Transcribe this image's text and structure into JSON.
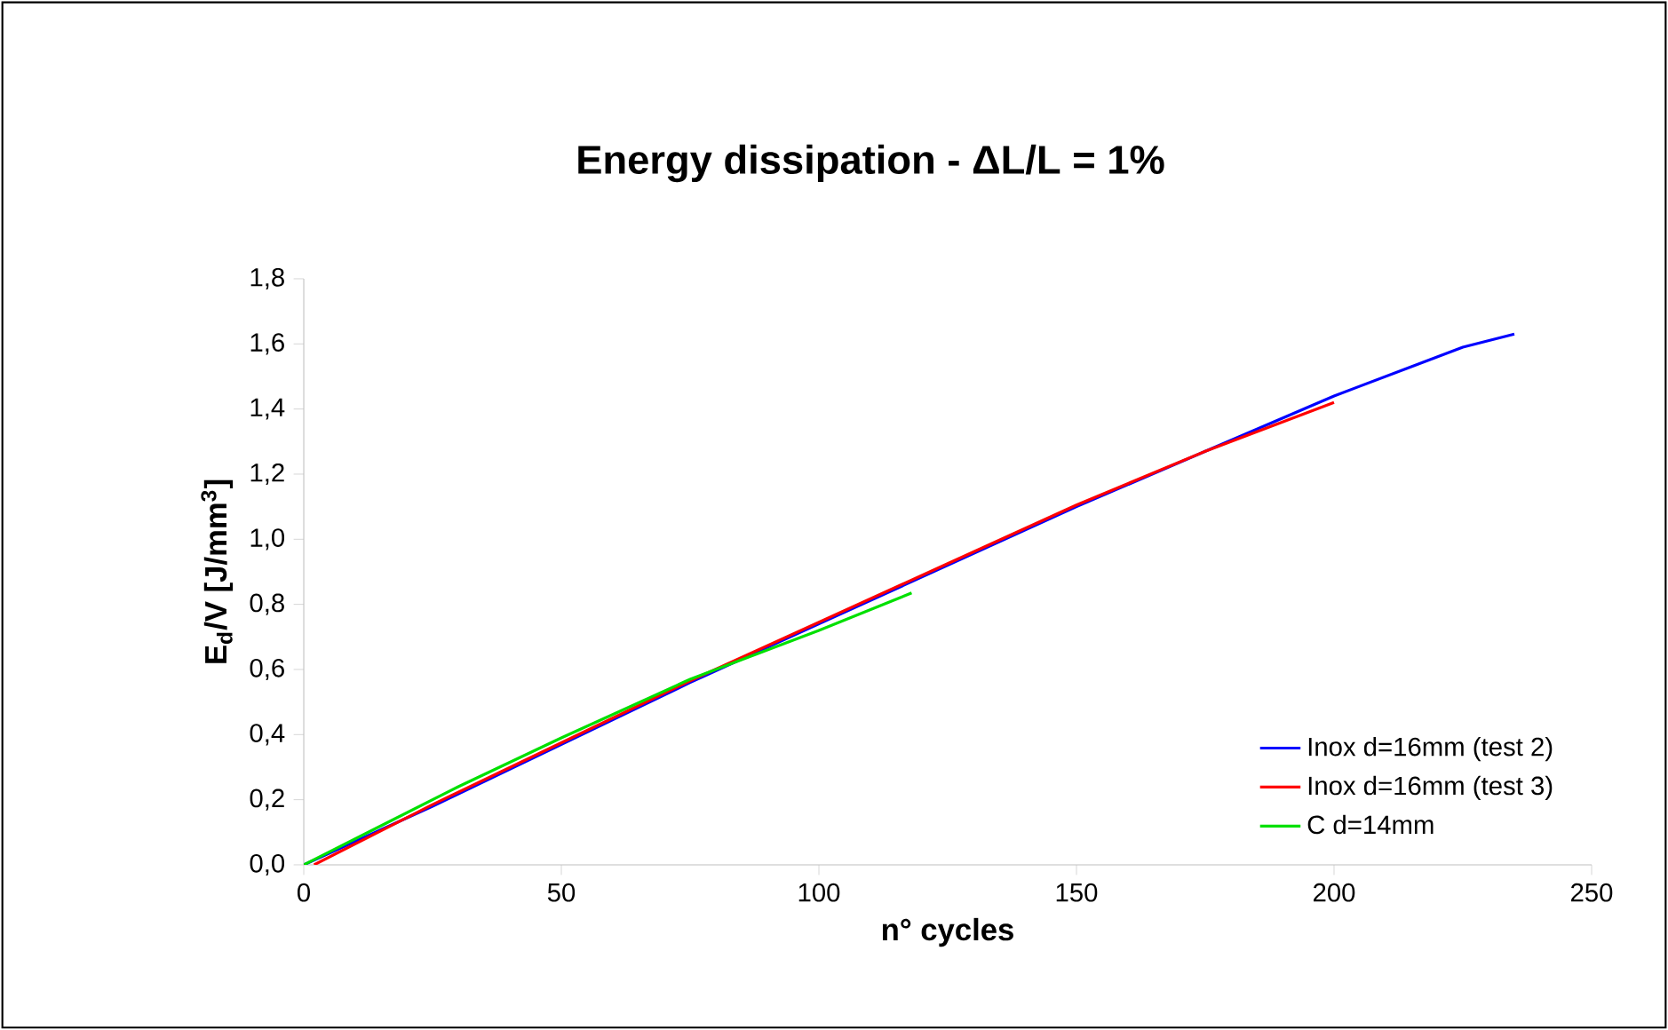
{
  "chart_data": {
    "type": "line",
    "title": "Energy dissipation - ΔL/L = 1%",
    "xlabel": "n° cycles",
    "ylabel": "E$_{d}$/V [J/mm$^{3}$]",
    "xlim": [
      0,
      250
    ],
    "xticks": [
      0,
      50,
      100,
      150,
      200,
      250
    ],
    "ylim": [
      0,
      1.8
    ],
    "yticks": [
      {
        "value": 0,
        "label": "0,0"
      },
      {
        "value": 0.2,
        "label": "0,2"
      },
      {
        "value": 0.4,
        "label": "0,4"
      },
      {
        "value": 0.6,
        "label": "0,6"
      },
      {
        "value": 0.8,
        "label": "0,8"
      },
      {
        "value": 1.0,
        "label": "1,0"
      },
      {
        "value": 1.2,
        "label": "1,2"
      },
      {
        "value": 1.4,
        "label": "1,4"
      },
      {
        "value": 1.6,
        "label": "1,6"
      },
      {
        "value": 1.8,
        "label": "1,8"
      }
    ],
    "grid": false,
    "legend": "bottom right",
    "marker": "none",
    "line_style": "solid",
    "series": [
      {
        "name": "Inox d=16mm (test 2)",
        "color": "#0000ff",
        "x": [
          0,
          25,
          50,
          75,
          100,
          125,
          150,
          175,
          200,
          215,
          225,
          235
        ],
        "values": [
          0,
          0.18,
          0.37,
          0.56,
          0.74,
          0.92,
          1.1,
          1.27,
          1.44,
          1.53,
          1.59,
          1.63
        ]
      },
      {
        "name": "Inox d=16mm (test 3)",
        "color": "#ff0000",
        "x": [
          2,
          25,
          50,
          75,
          100,
          125,
          150,
          175,
          200
        ],
        "values": [
          0,
          0.185,
          0.375,
          0.565,
          0.745,
          0.925,
          1.105,
          1.27,
          1.42
        ]
      },
      {
        "name": "C d=14mm",
        "color": "#00e000",
        "x": [
          0,
          15,
          30,
          50,
          75,
          100,
          118
        ],
        "values": [
          0,
          0.12,
          0.24,
          0.39,
          0.57,
          0.72,
          0.835
        ]
      }
    ]
  }
}
